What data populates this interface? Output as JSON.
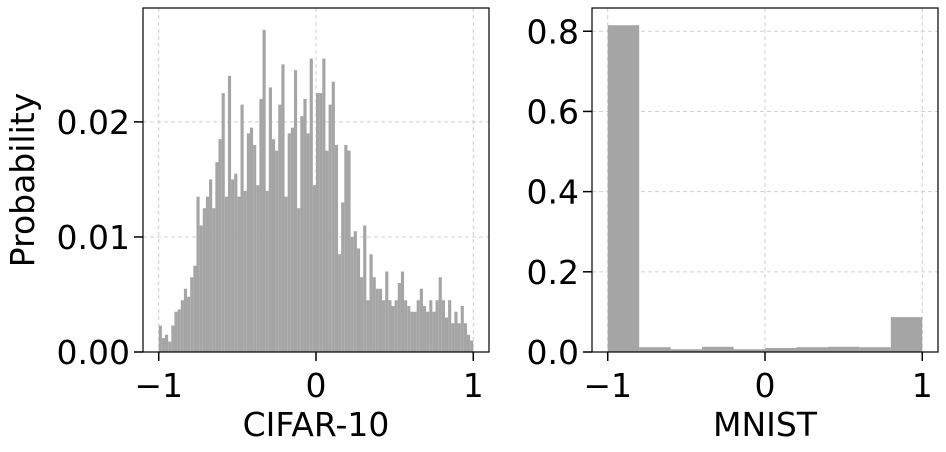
{
  "chart_data": [
    {
      "type": "histogram",
      "xlabel": "CIFAR-10",
      "ylabel": "Probability",
      "color": "#a5a5a5",
      "grid": true,
      "bins": [
        -1,
        -0.98,
        -0.96,
        -0.94,
        -0.92,
        -0.9,
        -0.88,
        -0.86,
        -0.84,
        -0.82,
        -0.8,
        -0.78,
        -0.76,
        -0.74,
        -0.72,
        -0.7,
        -0.68,
        -0.66,
        -0.64,
        -0.62,
        -0.6,
        -0.58,
        -0.56,
        -0.54,
        -0.52,
        -0.5,
        -0.48,
        -0.46,
        -0.44,
        -0.42,
        -0.4,
        -0.38,
        -0.36,
        -0.34,
        -0.32,
        -0.3,
        -0.28,
        -0.26,
        -0.24,
        -0.22,
        -0.2,
        -0.18,
        -0.16,
        -0.14,
        -0.12,
        -0.1,
        -0.08,
        -0.06,
        -0.04,
        -0.02,
        0,
        0.02,
        0.04,
        0.06,
        0.08,
        0.1,
        0.12,
        0.14,
        0.16,
        0.18,
        0.2,
        0.22,
        0.24,
        0.26,
        0.28,
        0.3,
        0.32,
        0.34,
        0.36,
        0.38,
        0.4,
        0.42,
        0.44,
        0.46,
        0.48,
        0.5,
        0.52,
        0.54,
        0.56,
        0.58,
        0.6,
        0.62,
        0.64,
        0.66,
        0.68,
        0.7,
        0.72,
        0.74,
        0.76,
        0.78,
        0.8,
        0.82,
        0.84,
        0.86,
        0.88,
        0.9,
        0.92,
        0.94,
        0.96,
        0.98,
        1
      ],
      "values": [
        0.0023,
        0.0012,
        0.0015,
        0.0009,
        0.0023,
        0.0035,
        0.0037,
        0.0045,
        0.0055,
        0.0048,
        0.0065,
        0.0075,
        0.0135,
        0.011,
        0.0125,
        0.0135,
        0.015,
        0.0125,
        0.0165,
        0.0185,
        0.0225,
        0.0135,
        0.024,
        0.015,
        0.0155,
        0.0135,
        0.0215,
        0.014,
        0.019,
        0.0195,
        0.018,
        0.0145,
        0.022,
        0.028,
        0.014,
        0.023,
        0.0185,
        0.0175,
        0.0215,
        0.025,
        0.0135,
        0.019,
        0.0195,
        0.0245,
        0.0125,
        0.0205,
        0.022,
        0.019,
        0.0255,
        0.0145,
        0.0225,
        0.0225,
        0.0255,
        0.0175,
        0.0215,
        0.0235,
        0.018,
        0.0085,
        0.013,
        0.018,
        0.0175,
        0.01,
        0.0105,
        0.009,
        0.0065,
        0.011,
        0.0045,
        0.0085,
        0.0065,
        0.0055,
        0.0055,
        0.0045,
        0.007,
        0.0045,
        0.004,
        0.0045,
        0.006,
        0.007,
        0.0045,
        0.004,
        0.0035,
        0.0035,
        0.0045,
        0.0055,
        0.004,
        0.0035,
        0.0045,
        0.0035,
        0.0045,
        0.0065,
        0.0045,
        0.003,
        0.0045,
        0.0025,
        0.0035,
        0.0025,
        0.004,
        0.0025,
        0.0015,
        0.001
      ],
      "xlim": [
        -1.1,
        1.1
      ],
      "ylim": [
        0,
        0.0299
      ],
      "xticks": [
        {
          "value": -1,
          "label": "−1"
        },
        0,
        1
      ],
      "yticks": [
        {
          "value": 0,
          "label": "0.00"
        },
        {
          "value": 0.01,
          "label": "0.01"
        },
        {
          "value": 0.02,
          "label": "0.02"
        }
      ]
    },
    {
      "type": "histogram",
      "xlabel": "MNIST",
      "color": "#a5a5a5",
      "grid": true,
      "bins": [
        -1,
        -0.8,
        -0.6,
        -0.4,
        -0.2,
        0,
        0.2,
        0.4,
        0.6,
        0.8,
        1
      ],
      "values": [
        0.815,
        0.012,
        0.007,
        0.013,
        0.007,
        0.01,
        0.012,
        0.013,
        0.012,
        0.087
      ],
      "xlim": [
        -1.1,
        1.1
      ],
      "ylim": [
        0,
        0.858
      ],
      "xticks": [
        {
          "value": -1,
          "label": "−1"
        },
        0,
        1
      ],
      "yticks": [
        {
          "value": 0,
          "label": "0.0"
        },
        {
          "value": 0.2,
          "label": "0.2"
        },
        {
          "value": 0.4,
          "label": "0.4"
        },
        {
          "value": 0.6,
          "label": "0.6"
        },
        {
          "value": 0.8,
          "label": "0.8"
        }
      ]
    }
  ]
}
